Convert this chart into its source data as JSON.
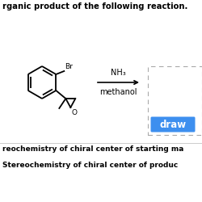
{
  "title_text": "rganic product of the following reaction.",
  "reagent_line1": "NH₃",
  "reagent_line2": "methanol",
  "draw_button_text": "draw",
  "draw_button_color": "#3d8fef",
  "draw_button_text_color": "#ffffff",
  "dashed_box_color": "#aaaaaa",
  "bottom_text1": "reochemistry of chiral center of starting ma",
  "bottom_text2": "Stereochemistry of chiral center of produc",
  "background_color": "#ffffff",
  "text_color": "#000000",
  "arrow_color": "#000000",
  "bond_color": "#000000",
  "br_label": "Br",
  "o_label": "O"
}
